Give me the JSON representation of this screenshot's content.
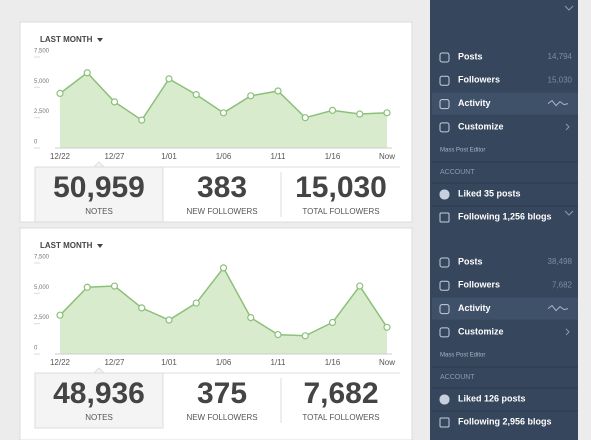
{
  "panels": [
    {
      "filter": "LAST MONTH",
      "chart_data": {
        "type": "area",
        "color": "#8cc07a",
        "fill": "#d9ebcd",
        "categories": [
          "12/22",
          null,
          "12/27",
          null,
          "1/01",
          null,
          "1/06",
          null,
          "1/11",
          null,
          "1/16",
          null,
          "Now"
        ],
        "values": [
          4500,
          6200,
          3800,
          2300,
          5700,
          4400,
          2900,
          4300,
          4700,
          2500,
          3100,
          2800,
          2900
        ],
        "ylim": [
          0,
          7500
        ],
        "yticks": [
          0,
          {
            "value": 2500,
            "label": "2,500"
          },
          {
            "value": 5000,
            "label": "5,000"
          },
          {
            "value": 7500,
            "label": "7,500"
          }
        ]
      },
      "stats": [
        {
          "value": "50,959",
          "label": "NOTES"
        },
        {
          "value": "383",
          "label": "NEW FOLLOWERS"
        },
        {
          "value": "15,030",
          "label": "TOTAL FOLLOWERS"
        }
      ],
      "sidebar": {
        "items": [
          {
            "label": "Posts",
            "count": "14,794"
          },
          {
            "label": "Followers",
            "count": "15,030"
          },
          {
            "label": "Activity"
          },
          {
            "label": "Customize"
          }
        ],
        "mass_post_editor": "Mass Post Editor",
        "account": "ACCOUNT",
        "account_items": [
          "Liked 35 posts",
          "Following 1,256 blogs"
        ]
      }
    },
    {
      "filter": "LAST MONTH",
      "chart_data": {
        "type": "area",
        "color": "#8cc07a",
        "fill": "#d9ebcd",
        "categories": [
          "12/22",
          null,
          "12/27",
          null,
          "1/01",
          null,
          "1/06",
          null,
          "1/11",
          null,
          "1/16",
          null,
          "Now"
        ],
        "values": [
          3200,
          5500,
          5600,
          3800,
          2800,
          4200,
          7100,
          3000,
          1600,
          1500,
          2600,
          5600,
          2200
        ],
        "ylim": [
          0,
          7500
        ],
        "yticks": [
          0,
          {
            "value": 2500,
            "label": "2,500"
          },
          {
            "value": 5000,
            "label": "5,000"
          },
          {
            "value": 7500,
            "label": "7,500"
          }
        ]
      },
      "stats": [
        {
          "value": "48,936",
          "label": "NOTES"
        },
        {
          "value": "375",
          "label": "NEW FOLLOWERS"
        },
        {
          "value": "7,682",
          "label": "TOTAL FOLLOWERS"
        }
      ],
      "sidebar": {
        "items": [
          {
            "label": "Posts",
            "count": "38,498"
          },
          {
            "label": "Followers",
            "count": "7,682"
          },
          {
            "label": "Activity"
          },
          {
            "label": "Customize"
          }
        ],
        "mass_post_editor": "Mass Post Editor",
        "account": "ACCOUNT",
        "account_items": [
          "Liked 126 posts",
          "Following 2,956 blogs"
        ]
      }
    }
  ]
}
